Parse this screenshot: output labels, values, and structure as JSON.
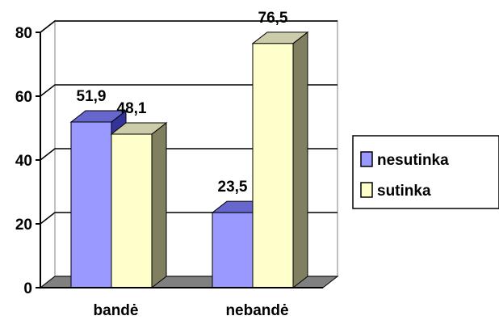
{
  "chart_data": {
    "type": "bar",
    "categories": [
      "bandė",
      "nebandė"
    ],
    "series": [
      {
        "name": "nesutinka",
        "values": [
          51.9,
          23.5
        ],
        "labels": [
          "51,9",
          "23,5"
        ],
        "color": "#9999ff"
      },
      {
        "name": "sutinka",
        "values": [
          48.1,
          76.5
        ],
        "labels": [
          "48,1",
          "76,5"
        ],
        "color": "#ffffcc"
      }
    ],
    "yticks": [
      0,
      20,
      40,
      60,
      80
    ],
    "ylim": [
      0,
      80
    ],
    "title": "",
    "xlabel": "",
    "ylabel": "",
    "grid": true,
    "legend_position": "right",
    "style": "3d-column",
    "colors": {
      "wall_side": "#c0c0c0",
      "floor": "#808080",
      "outline": "#000000",
      "background": "#ffffff"
    }
  }
}
